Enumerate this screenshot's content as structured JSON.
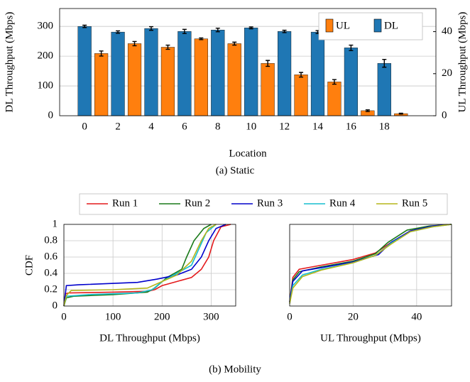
{
  "chart_data": [
    {
      "type": "bar",
      "xlabel": "Location",
      "ylabel": "DL Throughput (Mbps)",
      "y2label": "UL Throughput (Mbps)",
      "caption": "(a) Static",
      "xlim": [
        -1.5,
        21.1
      ],
      "xticks": [
        0,
        2,
        4,
        6,
        8,
        10,
        12,
        14,
        16,
        18
      ],
      "ylim": [
        0,
        360
      ],
      "yticks": [
        0,
        100,
        200,
        300
      ],
      "y2lim": [
        0,
        51
      ],
      "y2ticks": [
        0,
        20,
        40
      ],
      "grid": true,
      "legend": "upper right",
      "series": [
        {
          "name": "UL",
          "color": "#ff7f0e",
          "axis": "y2",
          "x": [
            1,
            3,
            5,
            7,
            9,
            11,
            13,
            15,
            17,
            19
          ],
          "values": [
            29.6,
            34.3,
            32.6,
            36.6,
            34.3,
            24.9,
            19.5,
            16.1,
            2.4,
            1.0
          ],
          "errors": [
            1.2,
            1.0,
            1.0,
            0.4,
            0.7,
            1.4,
            1.1,
            1.1,
            0.4,
            0.2
          ]
        },
        {
          "name": "DL",
          "color": "#1f77b4",
          "axis": "y",
          "x": [
            0,
            2,
            4,
            6,
            8,
            10,
            12,
            14,
            16,
            18
          ],
          "values": [
            300,
            281,
            293,
            283,
            288,
            295,
            283,
            281,
            228,
            176
          ],
          "errors": [
            4,
            4,
            6,
            7,
            6,
            3,
            4,
            5,
            9,
            13
          ]
        }
      ]
    },
    {
      "type": "line",
      "xlabel": "DL Throughput (Mbps)",
      "ylabel": "CDF",
      "caption": "(b) Mobility",
      "xlim": [
        0,
        350
      ],
      "xticks": [
        0,
        100,
        200,
        300
      ],
      "ylim": [
        0,
        1
      ],
      "yticks": [
        0,
        0.2,
        0.4,
        0.6,
        0.8,
        1
      ],
      "grid": true,
      "legend": "above",
      "series": [
        {
          "name": "Run 1",
          "color": "#e41a1c",
          "x": [
            0,
            3,
            10,
            100,
            170,
            185,
            200,
            230,
            260,
            280,
            295,
            305,
            320,
            340
          ],
          "y": [
            0,
            0.15,
            0.16,
            0.17,
            0.18,
            0.2,
            0.25,
            0.3,
            0.35,
            0.45,
            0.6,
            0.8,
            0.97,
            1
          ]
        },
        {
          "name": "Run 2",
          "color": "#1a7a1a",
          "x": [
            0,
            5,
            20,
            100,
            170,
            185,
            210,
            240,
            250,
            265,
            285,
            300
          ],
          "y": [
            0,
            0.1,
            0.12,
            0.14,
            0.17,
            0.22,
            0.35,
            0.45,
            0.6,
            0.8,
            0.95,
            1
          ]
        },
        {
          "name": "Run 3",
          "color": "#0000cc",
          "x": [
            0,
            5,
            30,
            150,
            190,
            230,
            260,
            280,
            295,
            310,
            330
          ],
          "y": [
            0,
            0.25,
            0.26,
            0.29,
            0.33,
            0.38,
            0.45,
            0.6,
            0.8,
            0.95,
            1
          ]
        },
        {
          "name": "Run 4",
          "color": "#17becf",
          "x": [
            0,
            5,
            50,
            150,
            180,
            200,
            230,
            260,
            275,
            290,
            310
          ],
          "y": [
            0,
            0.12,
            0.14,
            0.16,
            0.2,
            0.3,
            0.4,
            0.5,
            0.7,
            0.9,
            1
          ]
        },
        {
          "name": "Run 5",
          "color": "#b5b51a",
          "x": [
            0,
            5,
            15,
            100,
            170,
            200,
            230,
            260,
            280,
            295,
            310
          ],
          "y": [
            0,
            0.13,
            0.19,
            0.2,
            0.22,
            0.3,
            0.38,
            0.55,
            0.8,
            0.95,
            1
          ]
        }
      ]
    },
    {
      "type": "line",
      "xlabel": "UL Throughput (Mbps)",
      "xlim": [
        0,
        51
      ],
      "xticks": [
        0,
        20,
        40
      ],
      "ylim": [
        0,
        1
      ],
      "yticks": [
        0,
        0.2,
        0.4,
        0.6,
        0.8,
        1
      ],
      "ytick_labels": false,
      "grid": true,
      "series": [
        {
          "color": "#e41a1c",
          "x": [
            0,
            1,
            3,
            10,
            20,
            27,
            32,
            38,
            45,
            51
          ],
          "y": [
            0.05,
            0.35,
            0.45,
            0.5,
            0.57,
            0.65,
            0.78,
            0.92,
            0.98,
            1
          ]
        },
        {
          "color": "#1a7a1a",
          "x": [
            0,
            1,
            3,
            10,
            20,
            27,
            31,
            37,
            44,
            51
          ],
          "y": [
            0.05,
            0.32,
            0.42,
            0.48,
            0.55,
            0.64,
            0.78,
            0.93,
            0.98,
            1
          ]
        },
        {
          "color": "#0000cc",
          "x": [
            0,
            1,
            4,
            10,
            20,
            28,
            32,
            38,
            45,
            51
          ],
          "y": [
            0.05,
            0.3,
            0.43,
            0.47,
            0.54,
            0.63,
            0.78,
            0.92,
            0.98,
            1
          ]
        },
        {
          "color": "#17becf",
          "x": [
            0,
            1,
            4,
            10,
            20,
            27,
            32,
            38,
            45,
            51
          ],
          "y": [
            0.03,
            0.25,
            0.38,
            0.45,
            0.53,
            0.62,
            0.77,
            0.91,
            0.97,
            1
          ]
        },
        {
          "color": "#b5b51a",
          "x": [
            0,
            1,
            4,
            10,
            20,
            27,
            32,
            38,
            45,
            51
          ],
          "y": [
            0.03,
            0.22,
            0.36,
            0.44,
            0.53,
            0.62,
            0.76,
            0.91,
            0.97,
            1
          ]
        }
      ]
    }
  ]
}
